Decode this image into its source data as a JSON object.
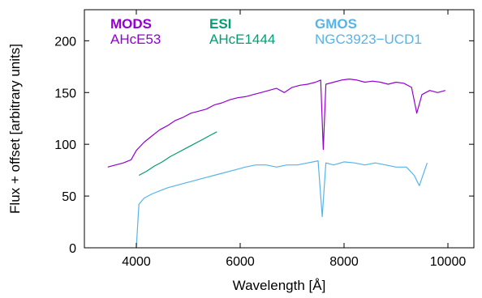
{
  "chart_data": {
    "type": "line",
    "title": "",
    "xlabel": "Wavelength [Å]",
    "ylabel": "Flux + offset [arbitrary units]",
    "xlim": [
      3000,
      10500
    ],
    "ylim": [
      0,
      230
    ],
    "xticks": [
      4000,
      6000,
      8000,
      10000
    ],
    "yticks": [
      0,
      50,
      100,
      150,
      200
    ],
    "grid": false,
    "legend_placement": "top",
    "series": [
      {
        "instrument": "MODS",
        "name": "AHcE53",
        "color": "#9400d3",
        "x": [
          3450,
          3600,
          3750,
          3900,
          4000,
          4150,
          4300,
          4450,
          4600,
          4750,
          4900,
          5050,
          5200,
          5350,
          5500,
          5650,
          5800,
          5950,
          6100,
          6250,
          6400,
          6550,
          6700,
          6850,
          7000,
          7150,
          7300,
          7450,
          7550,
          7600,
          7650,
          7800,
          7950,
          8100,
          8250,
          8400,
          8550,
          8700,
          8850,
          9000,
          9150,
          9300,
          9400,
          9500,
          9650,
          9800,
          9950
        ],
        "y": [
          78,
          80,
          82,
          85,
          94,
          102,
          108,
          114,
          118,
          123,
          126,
          130,
          132,
          134,
          138,
          140,
          143,
          145,
          146,
          148,
          150,
          152,
          154,
          150,
          155,
          157,
          158,
          160,
          162,
          95,
          158,
          160,
          162,
          163,
          162,
          160,
          161,
          160,
          158,
          160,
          159,
          155,
          130,
          148,
          152,
          150,
          152
        ]
      },
      {
        "instrument": "ESI",
        "name": "AHcE1444",
        "color": "#009e73",
        "x": [
          4050,
          4200,
          4350,
          4500,
          4650,
          4800,
          4950,
          5100,
          5250,
          5400,
          5550
        ],
        "y": [
          70,
          74,
          79,
          83,
          88,
          92,
          96,
          100,
          104,
          108,
          112
        ]
      },
      {
        "instrument": "GMOS",
        "name": "NGC3923−UCD1",
        "color": "#56b4e9",
        "x": [
          4000,
          4050,
          4150,
          4300,
          4450,
          4600,
          4750,
          4900,
          5050,
          5200,
          5350,
          5500,
          5650,
          5800,
          5950,
          6100,
          6300,
          6500,
          6700,
          6900,
          7100,
          7300,
          7500,
          7580,
          7650,
          7800,
          8000,
          8200,
          8400,
          8600,
          8800,
          9000,
          9200,
          9350,
          9450,
          9600
        ],
        "y": [
          0,
          42,
          48,
          52,
          55,
          58,
          60,
          62,
          64,
          66,
          68,
          70,
          72,
          74,
          76,
          78,
          80,
          80,
          78,
          80,
          80,
          82,
          84,
          30,
          82,
          80,
          83,
          82,
          80,
          82,
          80,
          78,
          78,
          70,
          60,
          82
        ]
      }
    ]
  }
}
